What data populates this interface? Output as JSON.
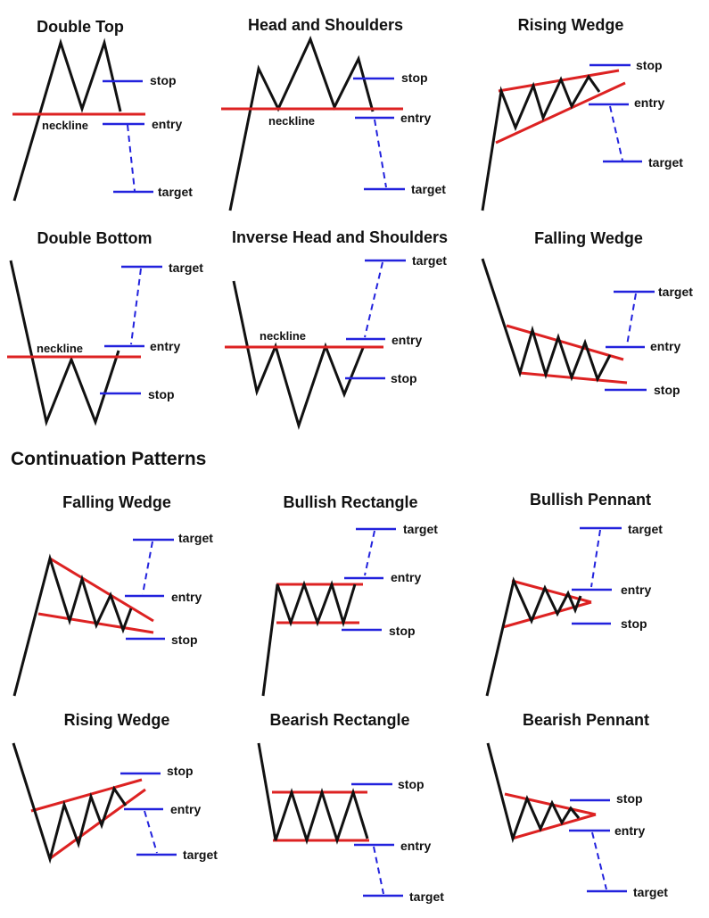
{
  "section_header": "Continuation Patterns",
  "labels": {
    "stop": "stop",
    "entry": "entry",
    "target": "target",
    "neckline": "neckline"
  },
  "colors": {
    "price": "#111111",
    "level_line": "#dd2222",
    "marker": "#2222dd",
    "text": "#111111"
  },
  "patterns": [
    {
      "id": "double-top",
      "title": "Double Top"
    },
    {
      "id": "head-and-shoulders",
      "title": "Head and Shoulders"
    },
    {
      "id": "rising-wedge-reversal",
      "title": "Rising Wedge"
    },
    {
      "id": "double-bottom",
      "title": "Double Bottom"
    },
    {
      "id": "inverse-head-and-shoulders",
      "title": "Inverse Head and Shoulders"
    },
    {
      "id": "falling-wedge-reversal",
      "title": "Falling Wedge"
    },
    {
      "id": "falling-wedge-continuation",
      "title": "Falling Wedge"
    },
    {
      "id": "bullish-rectangle",
      "title": "Bullish Rectangle"
    },
    {
      "id": "bullish-pennant",
      "title": "Bullish Pennant"
    },
    {
      "id": "rising-wedge-continuation",
      "title": "Rising Wedge"
    },
    {
      "id": "bearish-rectangle",
      "title": "Bearish Rectangle"
    },
    {
      "id": "bearish-pennant",
      "title": "Bearish Pennant"
    }
  ]
}
